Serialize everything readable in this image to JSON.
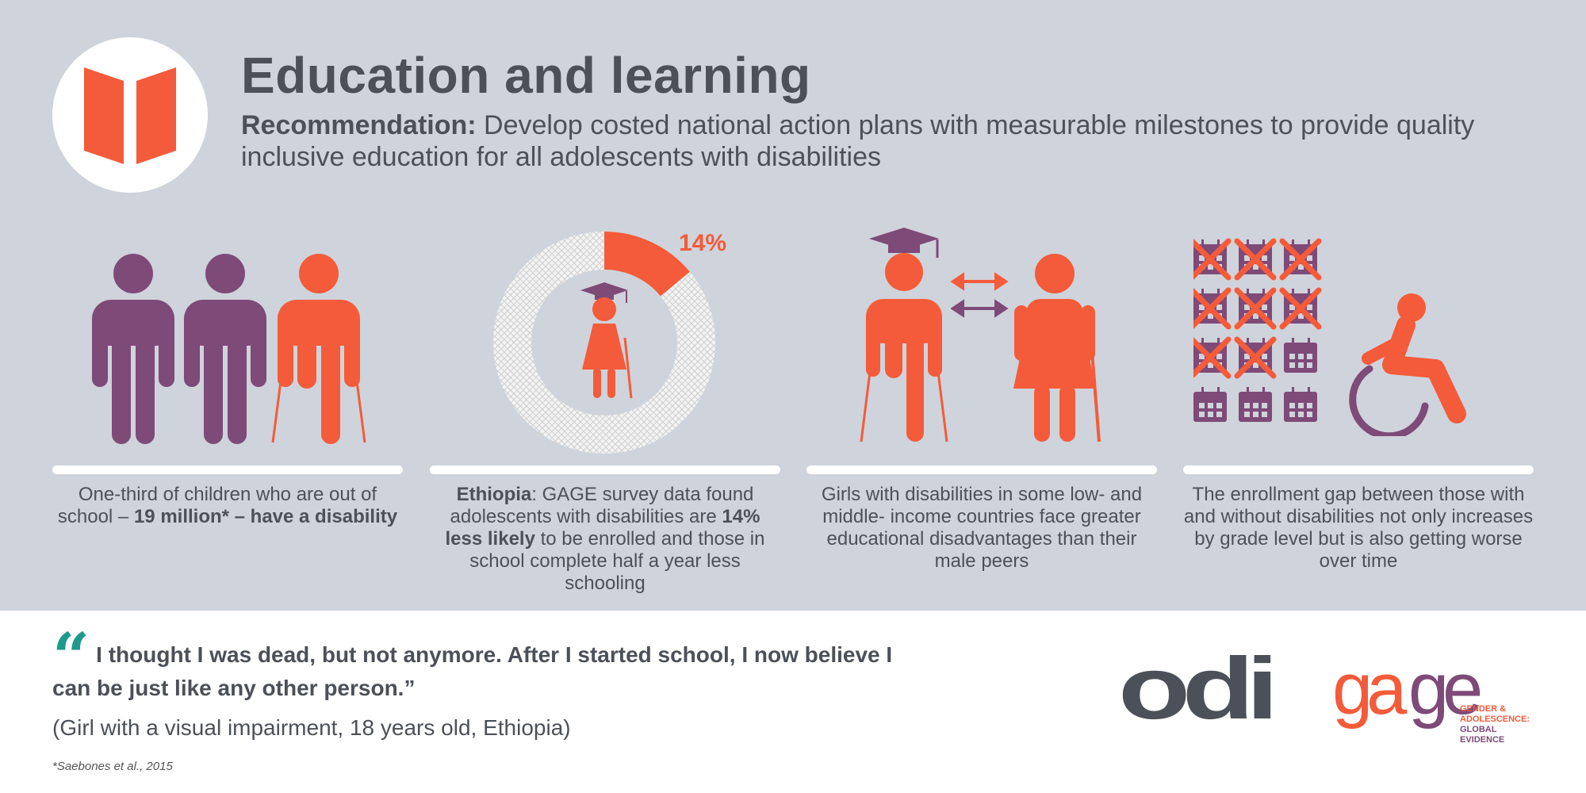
{
  "header": {
    "title": "Education and learning",
    "recommendation_label": "Recommendation:",
    "recommendation_text": " Develop costed national action plans with measurable milestones to provide quality inclusive education for all adolescents with disabilities"
  },
  "panels": [
    {
      "caption_plain": "One-third of children who are out of school – ",
      "caption_bold": "19 million* – have a disability"
    },
    {
      "percent_label": "14%",
      "percent_value": 14,
      "caption_bold_1": "Ethiopia",
      "caption_plain_1": ": GAGE survey data found adolescents with disabilities are ",
      "caption_bold_2": "14% less likely",
      "caption_plain_2": " to be enrolled and those in school complete half a year less schooling"
    },
    {
      "caption": "Girls with disabilities in some low- and middle- income countries face greater educational disadvantages than their male peers"
    },
    {
      "caption": "The enrollment gap between those with and without disabilities not only increases by grade level but is also getting worse over time"
    }
  ],
  "quote": {
    "text": "I thought I was dead, but not anymore. After I started school, I now believe I can be just like any other person.”",
    "attribution": "(Girl with a visual impairment, 18 years old, Ethiopia)",
    "footnote": "*Saebones et al., 2015"
  },
  "logos": {
    "odi": "odi",
    "gage_line1": "GENDER &",
    "gage_line2": "ADOLESCENCE:",
    "gage_line3": "GLOBAL",
    "gage_line4": "EVIDENCE"
  },
  "colors": {
    "orange": "#f45b3a",
    "purple": "#7e4a78",
    "teal": "#1e9a8b",
    "dark": "#4c5058",
    "background": "#cfd3db"
  }
}
